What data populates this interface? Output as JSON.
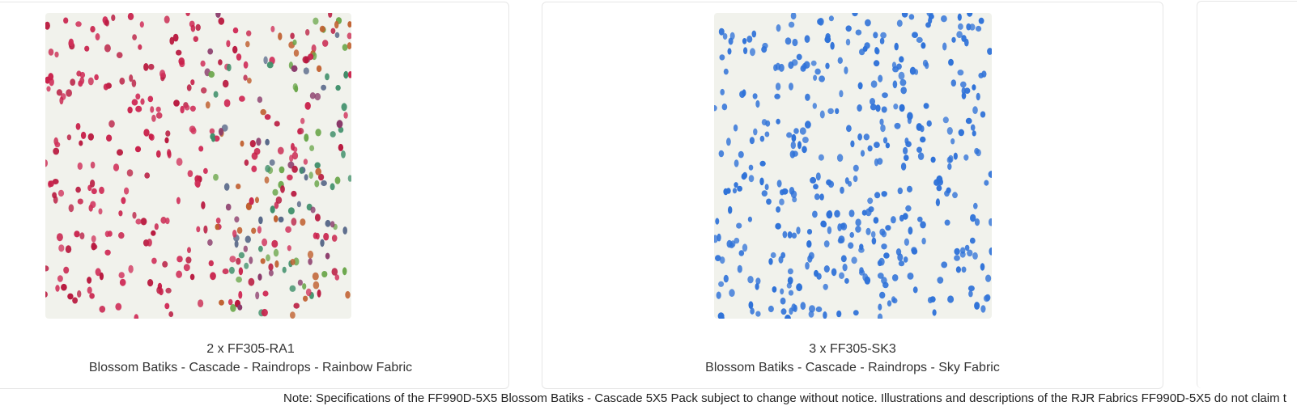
{
  "products": [
    {
      "quantity_sku": "2 x FF305-RA1",
      "name": "Blossom Batiks - Cascade - Raindrops - Rainbow Fabric",
      "pattern": "rainbow-raindrops"
    },
    {
      "quantity_sku": "3 x FF305-SK3",
      "name": "Blossom Batiks - Cascade - Raindrops - Sky Fabric",
      "pattern": "sky-raindrops",
      "drop_color": "#2f72d8"
    }
  ],
  "note": "Note: Specifications of the FF990D-5X5 Blossom Batiks - Cascade 5X5 Pack subject to change without notice. Illustrations and descriptions of the RJR Fabrics FF990D-5X5 do not claim t"
}
